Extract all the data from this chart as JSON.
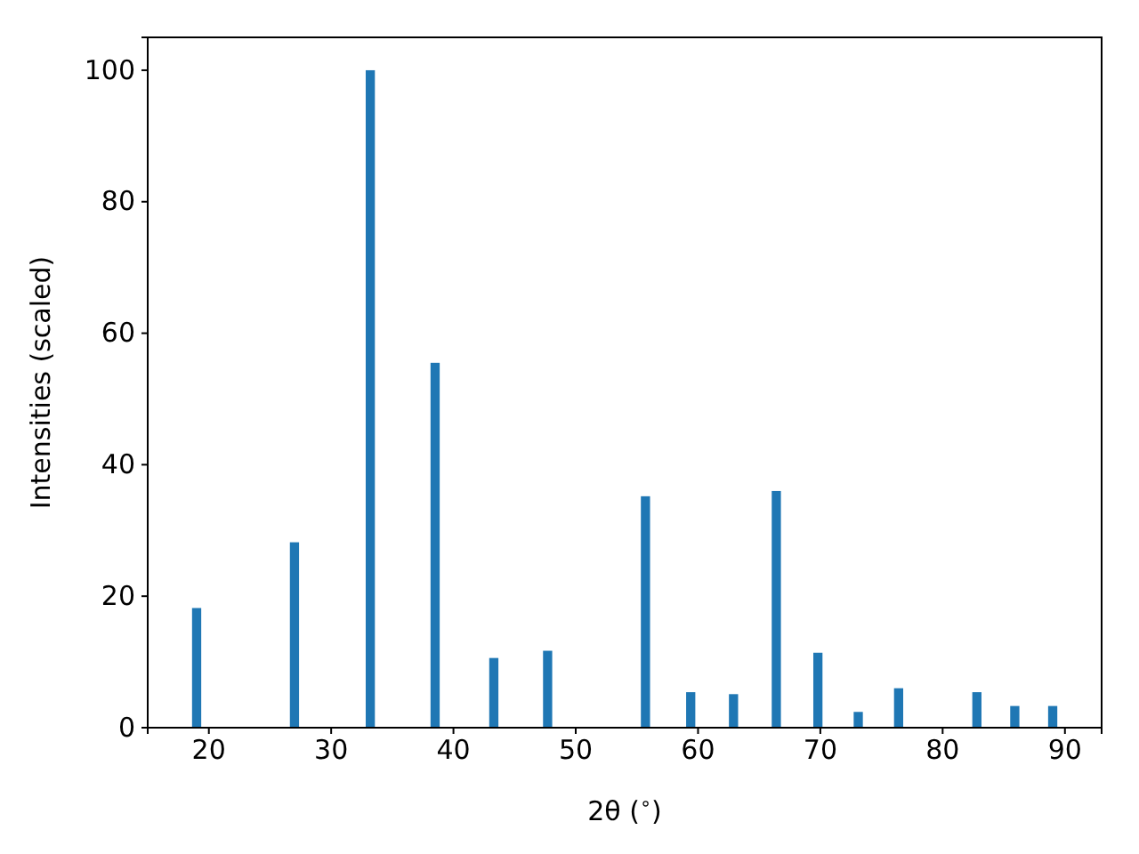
{
  "chart_data": {
    "type": "bar",
    "xlabel": "2θ ($^{∘}$)",
    "ylabel": "Intensities (scaled)",
    "x": [
      19.0,
      27.0,
      33.2,
      38.5,
      43.3,
      47.7,
      55.7,
      59.4,
      62.9,
      66.4,
      69.8,
      73.1,
      76.4,
      82.8,
      85.9,
      89.0
    ],
    "values": [
      18.2,
      28.2,
      100,
      55.5,
      10.6,
      11.7,
      35.2,
      5.4,
      5.1,
      36.0,
      11.4,
      2.4,
      6.0,
      5.4,
      3.3,
      3.3
    ],
    "color": "#1f77b4",
    "xlim": [
      15,
      93
    ],
    "xticks": [
      20,
      30,
      40,
      50,
      60,
      70,
      80,
      90
    ],
    "ylim": [
      0,
      105
    ],
    "yticks": [
      0,
      20,
      40,
      60,
      80,
      100
    ]
  }
}
